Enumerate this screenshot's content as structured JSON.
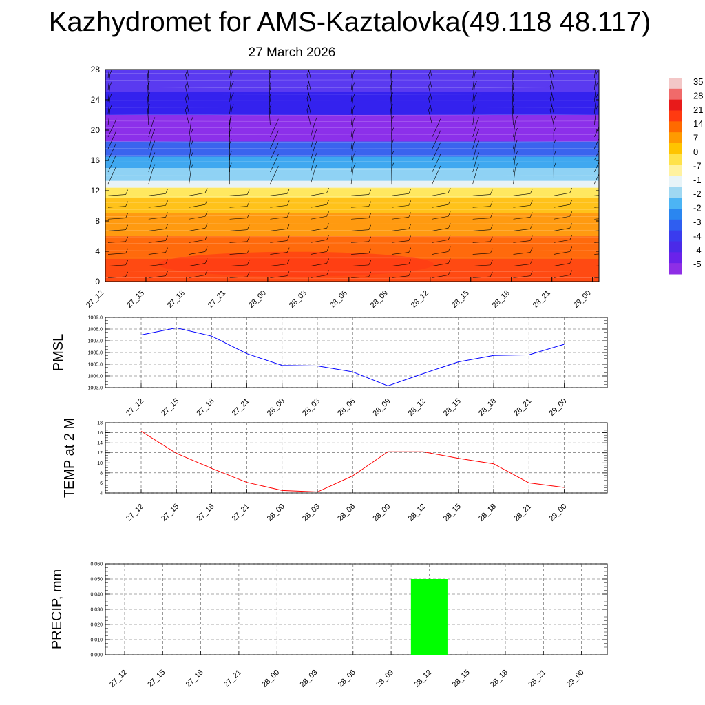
{
  "title": "Kazhydromet for AMS-Kaztalovka(49.118 48.117)",
  "subtitle": "27 March 2026",
  "chart_data": [
    {
      "id": "cross-section",
      "type": "heatmap",
      "description_note": "temperature cross-section with wind barbs",
      "x_tick_labels": [
        "27_12",
        "27_15",
        "27_18",
        "27_21",
        "28_00",
        "28_03",
        "28_06",
        "28_09",
        "28_12",
        "28_15",
        "28_18",
        "28_21",
        "29_00"
      ],
      "y_tick_labels": [
        "0",
        "4",
        "8",
        "12",
        "16",
        "20",
        "24",
        "28"
      ],
      "ylim": [
        0,
        28
      ],
      "colorbar_labels": [
        "35",
        "28",
        "21",
        "14",
        "7",
        "0",
        "-7",
        "-1",
        "-2",
        "-2",
        "-3",
        "-4",
        "-4",
        "-5"
      ],
      "bands": [
        {
          "from": 0,
          "to": 3,
          "color": "#ff4a12"
        },
        {
          "from": 3,
          "to": 6,
          "color": "#ff6a0c"
        },
        {
          "from": 6,
          "to": 9,
          "color": "#ff9a10"
        },
        {
          "from": 9,
          "to": 11,
          "color": "#ffc21a"
        },
        {
          "from": 11,
          "to": 12.4,
          "color": "#ffe860"
        },
        {
          "from": 12.4,
          "to": 13.3,
          "color": "#e8f2f6"
        },
        {
          "from": 13.3,
          "to": 15,
          "color": "#8fd2f4"
        },
        {
          "from": 15,
          "to": 16.5,
          "color": "#3fa8f0"
        },
        {
          "from": 16.5,
          "to": 18.5,
          "color": "#3a64ee"
        },
        {
          "from": 18.5,
          "to": 22,
          "color": "#8c30ea"
        },
        {
          "from": 22,
          "to": 25,
          "color": "#3422ee"
        },
        {
          "from": 25,
          "to": 28,
          "color": "#5a3af0"
        }
      ]
    },
    {
      "id": "pmsl",
      "type": "line",
      "ylabel": "PMSL",
      "categories": [
        "27_12",
        "27_15",
        "27_18",
        "27_21",
        "28_00",
        "28_03",
        "28_06",
        "28_09",
        "28_12",
        "28_15",
        "28_18",
        "28_21",
        "29_00"
      ],
      "values": [
        1007.5,
        1008.1,
        1007.4,
        1005.9,
        1004.9,
        1004.85,
        1004.35,
        1003.15,
        1004.2,
        1005.2,
        1005.75,
        1005.8,
        1006.7
      ],
      "ylim": [
        1003.0,
        1009.0
      ],
      "y_ticks": [
        "1003.0",
        "1004.0",
        "1005.0",
        "1006.0",
        "1007.0",
        "1008.0",
        "1009.0"
      ],
      "color": "#0000ff"
    },
    {
      "id": "temp",
      "type": "line",
      "ylabel": "TEMP at 2 M",
      "categories": [
        "27_12",
        "27_15",
        "27_18",
        "27_21",
        "28_00",
        "28_03",
        "28_06",
        "28_09",
        "28_12",
        "28_15",
        "28_18",
        "28_21",
        "29_00"
      ],
      "values": [
        16.3,
        11.9,
        8.9,
        6.1,
        4.5,
        4.2,
        7.4,
        12.2,
        12.2,
        10.9,
        9.8,
        6.0,
        5.1
      ],
      "ylim": [
        4,
        18
      ],
      "y_ticks": [
        "4",
        "6",
        "8",
        "10",
        "12",
        "14",
        "16",
        "18"
      ],
      "color": "#ff0000"
    },
    {
      "id": "precip",
      "type": "bar",
      "ylabel": "PRECIP, mm",
      "categories": [
        "27_12",
        "27_15",
        "27_18",
        "27_21",
        "28_00",
        "28_03",
        "28_06",
        "28_09",
        "28_12",
        "28_15",
        "28_18",
        "28_21",
        "29_00"
      ],
      "values": [
        0,
        0,
        0,
        0,
        0,
        0,
        0,
        0,
        0.05,
        0,
        0,
        0,
        0
      ],
      "ylim": [
        0,
        0.06
      ],
      "y_ticks": [
        "0.000",
        "0.010",
        "0.020",
        "0.030",
        "0.040",
        "0.050",
        "0.060"
      ],
      "color": "#00ff00"
    }
  ]
}
